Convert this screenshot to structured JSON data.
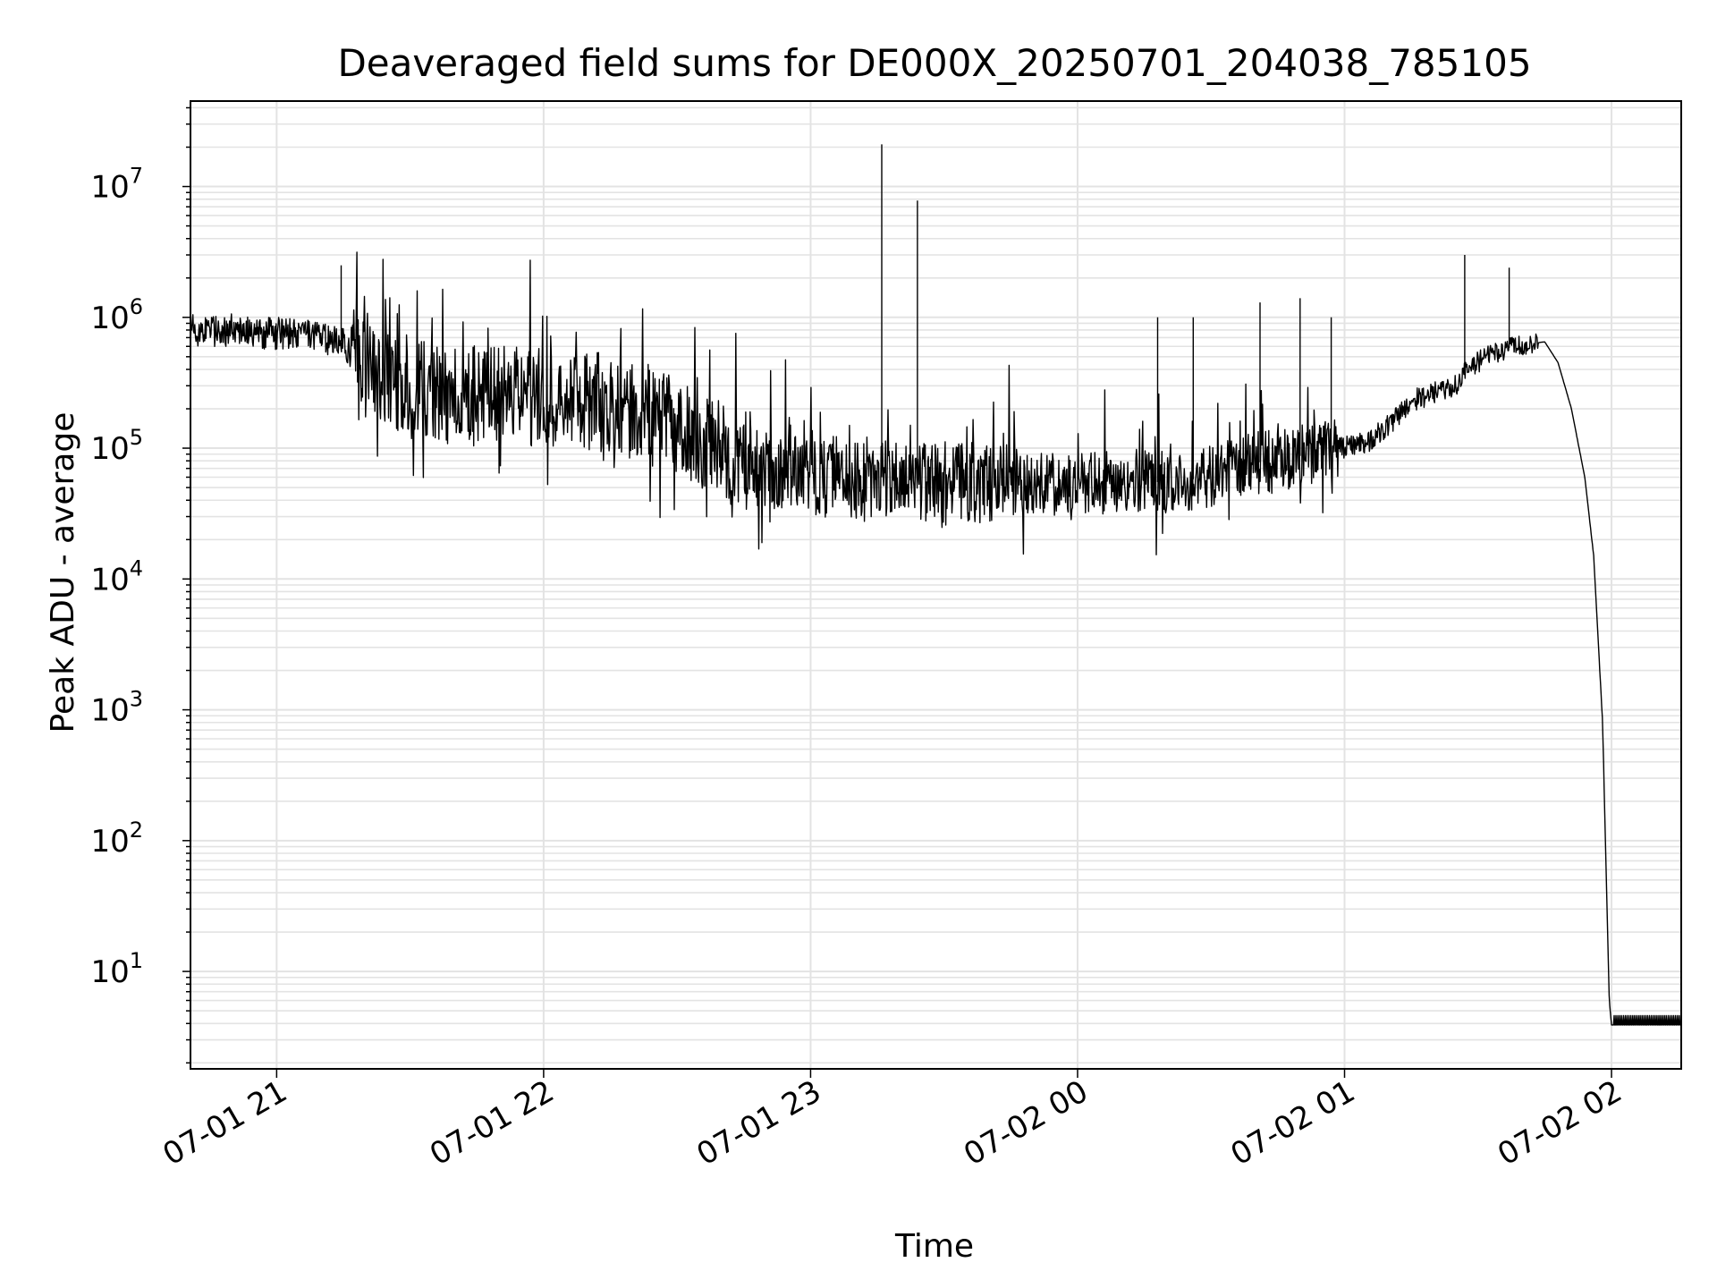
{
  "chart_data": {
    "type": "line",
    "title": "Deaveraged field sums for DE000X_20250701_204038_785105",
    "xlabel": "Time",
    "ylabel": "Peak ADU - average",
    "y_scale": "log",
    "xlim": [
      "2025-07-01T20:40:38",
      "2025-07-02T02:15:40"
    ],
    "ylim": [
      1.8,
      45000000
    ],
    "grid": true,
    "line_color": "#000000",
    "x_ticks": [
      {
        "t": "2025-07-01T21:00:00",
        "label": "07-01 21"
      },
      {
        "t": "2025-07-01T22:00:00",
        "label": "07-01 22"
      },
      {
        "t": "2025-07-01T23:00:00",
        "label": "07-01 23"
      },
      {
        "t": "2025-07-02T00:00:00",
        "label": "07-02 00"
      },
      {
        "t": "2025-07-02T01:00:00",
        "label": "07-02 01"
      },
      {
        "t": "2025-07-02T02:00:00",
        "label": "07-02 02"
      }
    ],
    "y_ticks": [
      {
        "value": 10,
        "base": "10",
        "exp": "1"
      },
      {
        "value": 100,
        "base": "10",
        "exp": "2"
      },
      {
        "value": 1000,
        "base": "10",
        "exp": "3"
      },
      {
        "value": 10000,
        "base": "10",
        "exp": "4"
      },
      {
        "value": 100000,
        "base": "10",
        "exp": "5"
      },
      {
        "value": 1000000,
        "base": "10",
        "exp": "6"
      },
      {
        "value": 10000000,
        "base": "10",
        "exp": "7"
      }
    ],
    "series": [
      {
        "style": "baseline with dense fluctuations",
        "points": [
          [
            "2025-07-01T20:40:38",
            800000
          ],
          [
            "2025-07-01T20:50:00",
            800000
          ],
          [
            "2025-07-01T21:00:00",
            750000
          ],
          [
            "2025-07-01T21:10:00",
            700000
          ],
          [
            "2025-07-01T21:15:00",
            650000
          ],
          [
            "2025-07-01T21:20:00",
            400000
          ],
          [
            "2025-07-01T21:30:00",
            300000
          ],
          [
            "2025-07-01T21:40:00",
            250000
          ],
          [
            "2025-07-01T21:50:00",
            250000
          ],
          [
            "2025-07-01T22:00:00",
            250000
          ],
          [
            "2025-07-01T22:10:00",
            230000
          ],
          [
            "2025-07-01T22:20:00",
            200000
          ],
          [
            "2025-07-01T22:30:00",
            150000
          ],
          [
            "2025-07-01T22:40:00",
            100000
          ],
          [
            "2025-07-01T22:50:00",
            70000
          ],
          [
            "2025-07-01T23:00:00",
            60000
          ],
          [
            "2025-07-01T23:10:00",
            60000
          ],
          [
            "2025-07-01T23:20:00",
            60000
          ],
          [
            "2025-07-01T23:30:00",
            55000
          ],
          [
            "2025-07-01T23:40:00",
            55000
          ],
          [
            "2025-07-01T23:50:00",
            52000
          ],
          [
            "2025-07-02T00:00:00",
            52000
          ],
          [
            "2025-07-02T00:10:00",
            55000
          ],
          [
            "2025-07-02T00:20:00",
            55000
          ],
          [
            "2025-07-02T00:30:00",
            60000
          ],
          [
            "2025-07-02T00:35:00",
            75000
          ],
          [
            "2025-07-02T00:45:00",
            80000
          ],
          [
            "2025-07-02T00:55:00",
            95000
          ],
          [
            "2025-07-02T01:05:00",
            110000
          ],
          [
            "2025-07-02T01:10:00",
            150000
          ],
          [
            "2025-07-02T01:15:00",
            230000
          ],
          [
            "2025-07-02T01:25:00",
            300000
          ],
          [
            "2025-07-02T01:28:00",
            420000
          ],
          [
            "2025-07-02T01:35:00",
            560000
          ],
          [
            "2025-07-02T01:40:00",
            620000
          ],
          [
            "2025-07-02T01:45:00",
            650000
          ],
          [
            "2025-07-02T01:48:00",
            450000
          ],
          [
            "2025-07-02T01:51:00",
            200000
          ],
          [
            "2025-07-02T01:54:00",
            60000
          ],
          [
            "2025-07-02T01:56:00",
            15000
          ],
          [
            "2025-07-02T01:58:00",
            800
          ],
          [
            "2025-07-02T01:59:30",
            6
          ],
          [
            "2025-07-02T02:00:00",
            3.9
          ],
          [
            "2025-07-02T02:15:40",
            3.9
          ]
        ]
      }
    ],
    "spikes": [
      [
        "2025-07-01T21:14:30",
        2500000
      ],
      [
        "2025-07-01T23:16:00",
        21000000
      ],
      [
        "2025-07-01T23:24:00",
        7800000
      ],
      [
        "2025-07-02T01:27:00",
        3000000
      ],
      [
        "2025-07-02T01:37:00",
        2400000
      ],
      [
        "2025-07-02T00:41:00",
        1300000
      ],
      [
        "2025-07-02T00:50:00",
        1400000
      ],
      [
        "2025-07-02T00:57:00",
        1000000
      ],
      [
        "2025-07-02T00:18:00",
        1000000
      ],
      [
        "2025-07-02T00:26:00",
        1000000
      ]
    ]
  }
}
